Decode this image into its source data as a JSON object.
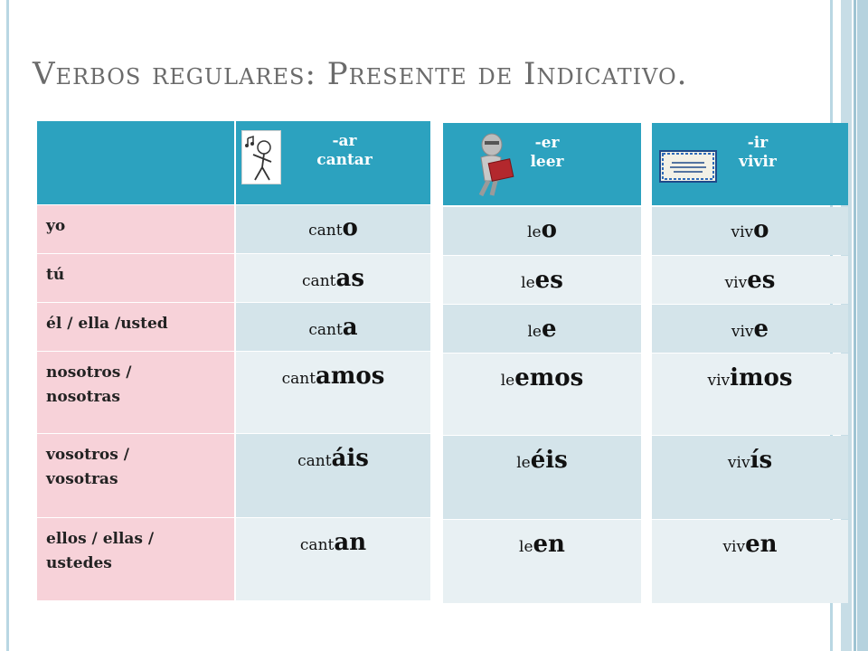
{
  "title": "Verbos regulares: Presente de Indicativo.",
  "pronouns": [
    [
      "yo"
    ],
    [
      "tú"
    ],
    [
      "él / ella /usted"
    ],
    [
      "nosotros /",
      "nosotras"
    ],
    [
      "vosotros /",
      "vosotras"
    ],
    [
      "ellos / ellas /",
      "ustedes"
    ]
  ],
  "groups": [
    {
      "ending": "-ar",
      "verb": "cantar",
      "icon": "singing-stick-figure-icon",
      "stem": "cant",
      "endings": [
        "o",
        "as",
        "a",
        "amos",
        "áis",
        "an"
      ]
    },
    {
      "ending": "-er",
      "verb": "leer",
      "icon": "reading-figure-icon",
      "stem": "le",
      "endings": [
        "o",
        "es",
        "e",
        "emos",
        "éis",
        "en"
      ]
    },
    {
      "ending": "-ir",
      "verb": "vivir",
      "icon": "tile-sign-icon",
      "stem": "viv",
      "endings": [
        "o",
        "es",
        "e",
        "imos",
        "ís",
        "en"
      ]
    }
  ],
  "colors": {
    "header": "#2ca2bf",
    "pronoun_bg": "#f7d2d9",
    "row_dark": "#d4e4ea",
    "row_light": "#e8f0f3",
    "title": "#6b6b6b"
  }
}
